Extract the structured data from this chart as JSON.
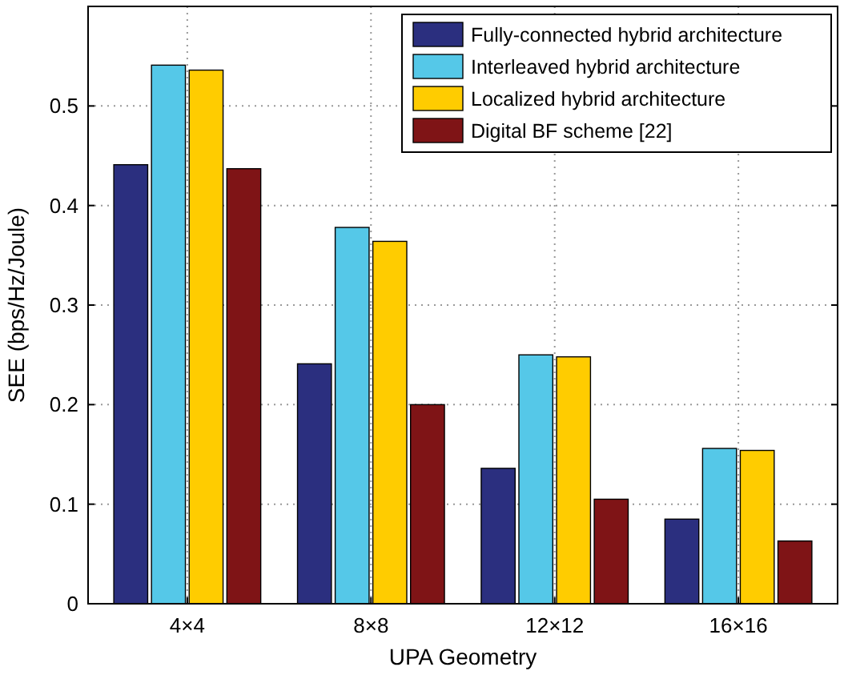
{
  "chart_data": {
    "type": "bar",
    "xlabel": "UPA Geometry",
    "ylabel": "SEE (bps/Hz/Joule)",
    "categories": [
      "4×4",
      "8×8",
      "12×12",
      "16×16"
    ],
    "series": [
      {
        "name": "Fully-connected hybrid architecture",
        "color": "#2b2f7f",
        "values": [
          0.441,
          0.241,
          0.136,
          0.085
        ]
      },
      {
        "name": "Interleaved hybrid architecture",
        "color": "#55c8e8",
        "values": [
          0.541,
          0.378,
          0.25,
          0.156
        ]
      },
      {
        "name": "Localized hybrid architecture",
        "color": "#ffcc00",
        "values": [
          0.536,
          0.364,
          0.248,
          0.154
        ]
      },
      {
        "name": "Digital BF scheme [22]",
        "color": "#7f1416",
        "values": [
          0.437,
          0.2,
          0.105,
          0.063
        ]
      }
    ],
    "ylim": [
      0,
      0.6
    ],
    "yticks": [
      0,
      0.1,
      0.2,
      0.3,
      0.4,
      0.5
    ],
    "grid": true,
    "legend": "top right"
  }
}
